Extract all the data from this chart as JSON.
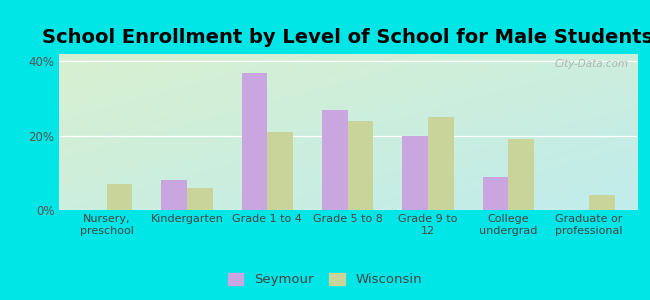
{
  "title": "School Enrollment by Level of School for Male Students",
  "categories": [
    "Nursery,\npreschool",
    "Kindergarten",
    "Grade 1 to 4",
    "Grade 5 to 8",
    "Grade 9 to\n12",
    "College\nundergrad",
    "Graduate or\nprofessional"
  ],
  "seymour": [
    0,
    8,
    37,
    27,
    20,
    9,
    0
  ],
  "wisconsin": [
    7,
    6,
    21,
    24,
    25,
    19,
    4
  ],
  "seymour_color": "#c9a6e0",
  "wisconsin_color": "#c8d49a",
  "background_color": "#00e5e5",
  "plot_bg_top_left": "#d8f0d0",
  "plot_bg_bottom_right": "#c0ecec",
  "yticks": [
    0,
    20,
    40
  ],
  "ylim": [
    0,
    42
  ],
  "watermark": "City-Data.com",
  "legend_labels": [
    "Seymour",
    "Wisconsin"
  ],
  "title_fontsize": 14,
  "tick_fontsize": 8
}
